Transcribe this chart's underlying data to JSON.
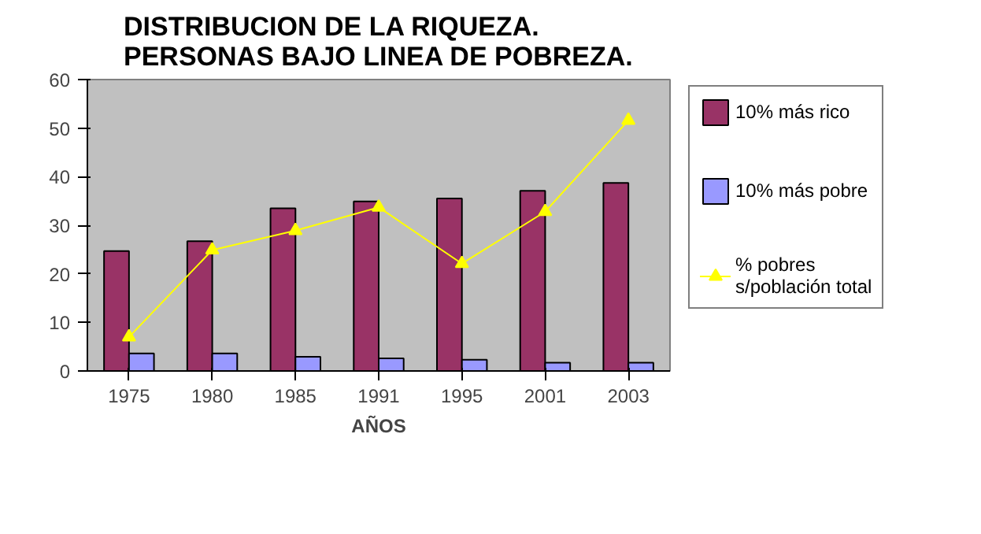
{
  "chart_data": {
    "type": "bar",
    "title": "DISTRIBUCION DE LA RIQUEZA.\nPERSONAS BAJO LINEA DE POBREZA.",
    "xlabel": "AÑOS",
    "categories": [
      "1975",
      "1980",
      "1985",
      "1991",
      "1995",
      "2001",
      "2003"
    ],
    "series": [
      {
        "name": "10% más rico",
        "color": "#993366",
        "values": [
          24.7,
          26.7,
          33.5,
          34.9,
          35.5,
          37.1,
          38.7
        ]
      },
      {
        "name": "10% más pobre",
        "color": "#9999ff",
        "values": [
          3.6,
          3.6,
          2.9,
          2.6,
          2.3,
          1.7,
          1.7
        ]
      },
      {
        "name": "% pobres s/población total",
        "type": "line",
        "color": "#ffff00",
        "marker": "triangle",
        "values": [
          7.0,
          24.9,
          28.9,
          33.7,
          22.1,
          32.8,
          51.6
        ]
      }
    ],
    "ylim": [
      0,
      60
    ],
    "yticks": [
      0,
      10,
      20,
      30,
      40,
      50,
      60
    ],
    "grid": false,
    "legend": "right"
  }
}
